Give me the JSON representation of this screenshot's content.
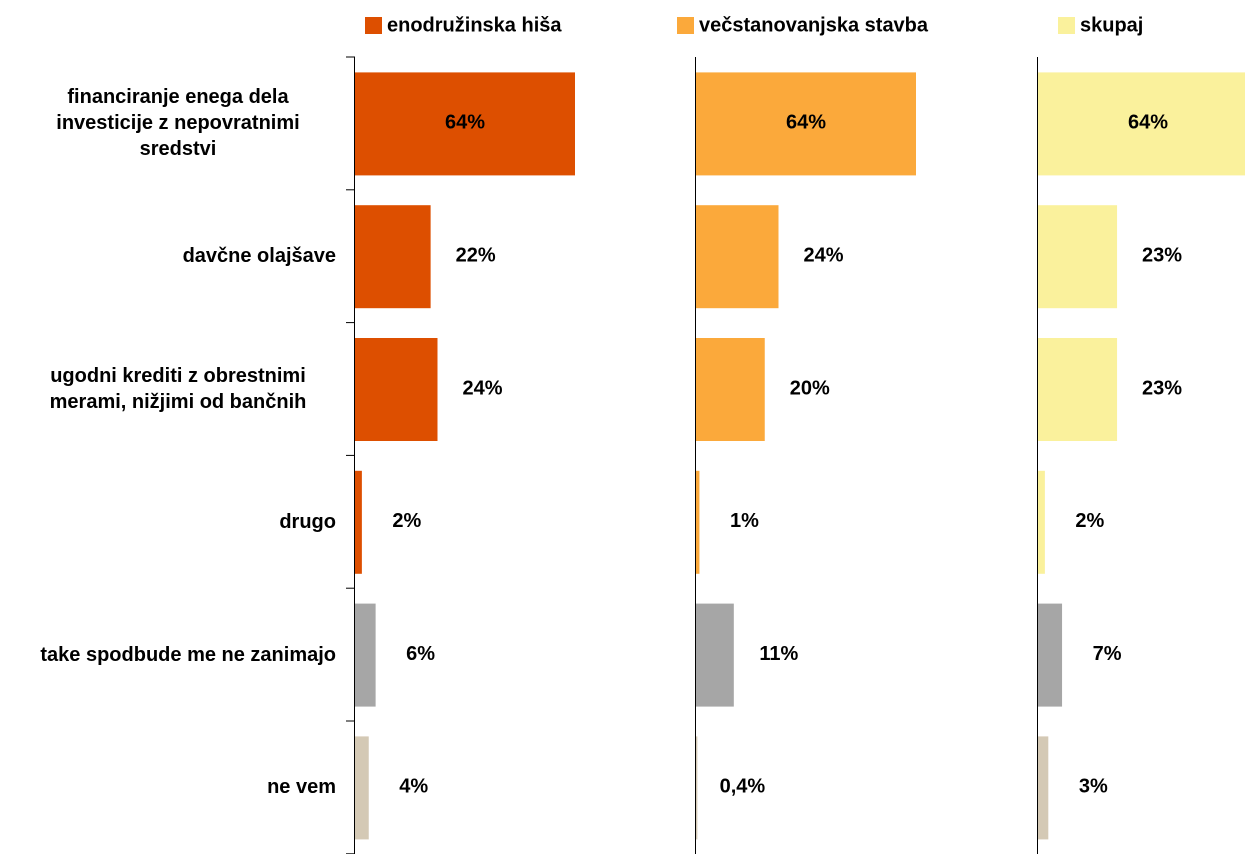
{
  "chart_data": {
    "type": "bar",
    "categories": [
      "financiranje enega dela investicije z nepovratnimi sredstvi",
      "davčne olajšave",
      "ugodni krediti z obrestnimi merami, nižjimi od bančnih",
      "drugo",
      "take spodbude me ne zanimajo",
      "ne vem"
    ],
    "series": [
      {
        "name": "enodružinska hiša",
        "color": "#dd4f00",
        "colors": [
          "#dd4f00",
          "#dd4f00",
          "#dd4f00",
          "#dd4f00",
          "#a6a6a6",
          "#d4c9b5"
        ],
        "values": [
          64,
          22,
          24,
          2,
          6,
          4
        ],
        "value_labels": [
          "64%",
          "22%",
          "24%",
          "2%",
          "6%",
          "4%"
        ]
      },
      {
        "name": "večstanovanjska stavba",
        "color": "#fba93b",
        "colors": [
          "#fba93b",
          "#fba93b",
          "#fba93b",
          "#fba93b",
          "#a6a6a6",
          "#d4c9b5"
        ],
        "values": [
          64,
          24,
          20,
          1,
          11,
          0.4
        ],
        "value_labels": [
          "64%",
          "24%",
          "20%",
          "1%",
          "11%",
          "0,4%"
        ]
      },
      {
        "name": "skupaj",
        "color": "#faf19c",
        "colors": [
          "#faf19c",
          "#faf19c",
          "#faf19c",
          "#faf19c",
          "#a6a6a6",
          "#d4c9b5"
        ],
        "values": [
          64,
          23,
          23,
          2,
          7,
          3
        ],
        "value_labels": [
          "64%",
          "23%",
          "23%",
          "2%",
          "7%",
          "3%"
        ]
      }
    ],
    "xlim": [
      0,
      64
    ]
  }
}
